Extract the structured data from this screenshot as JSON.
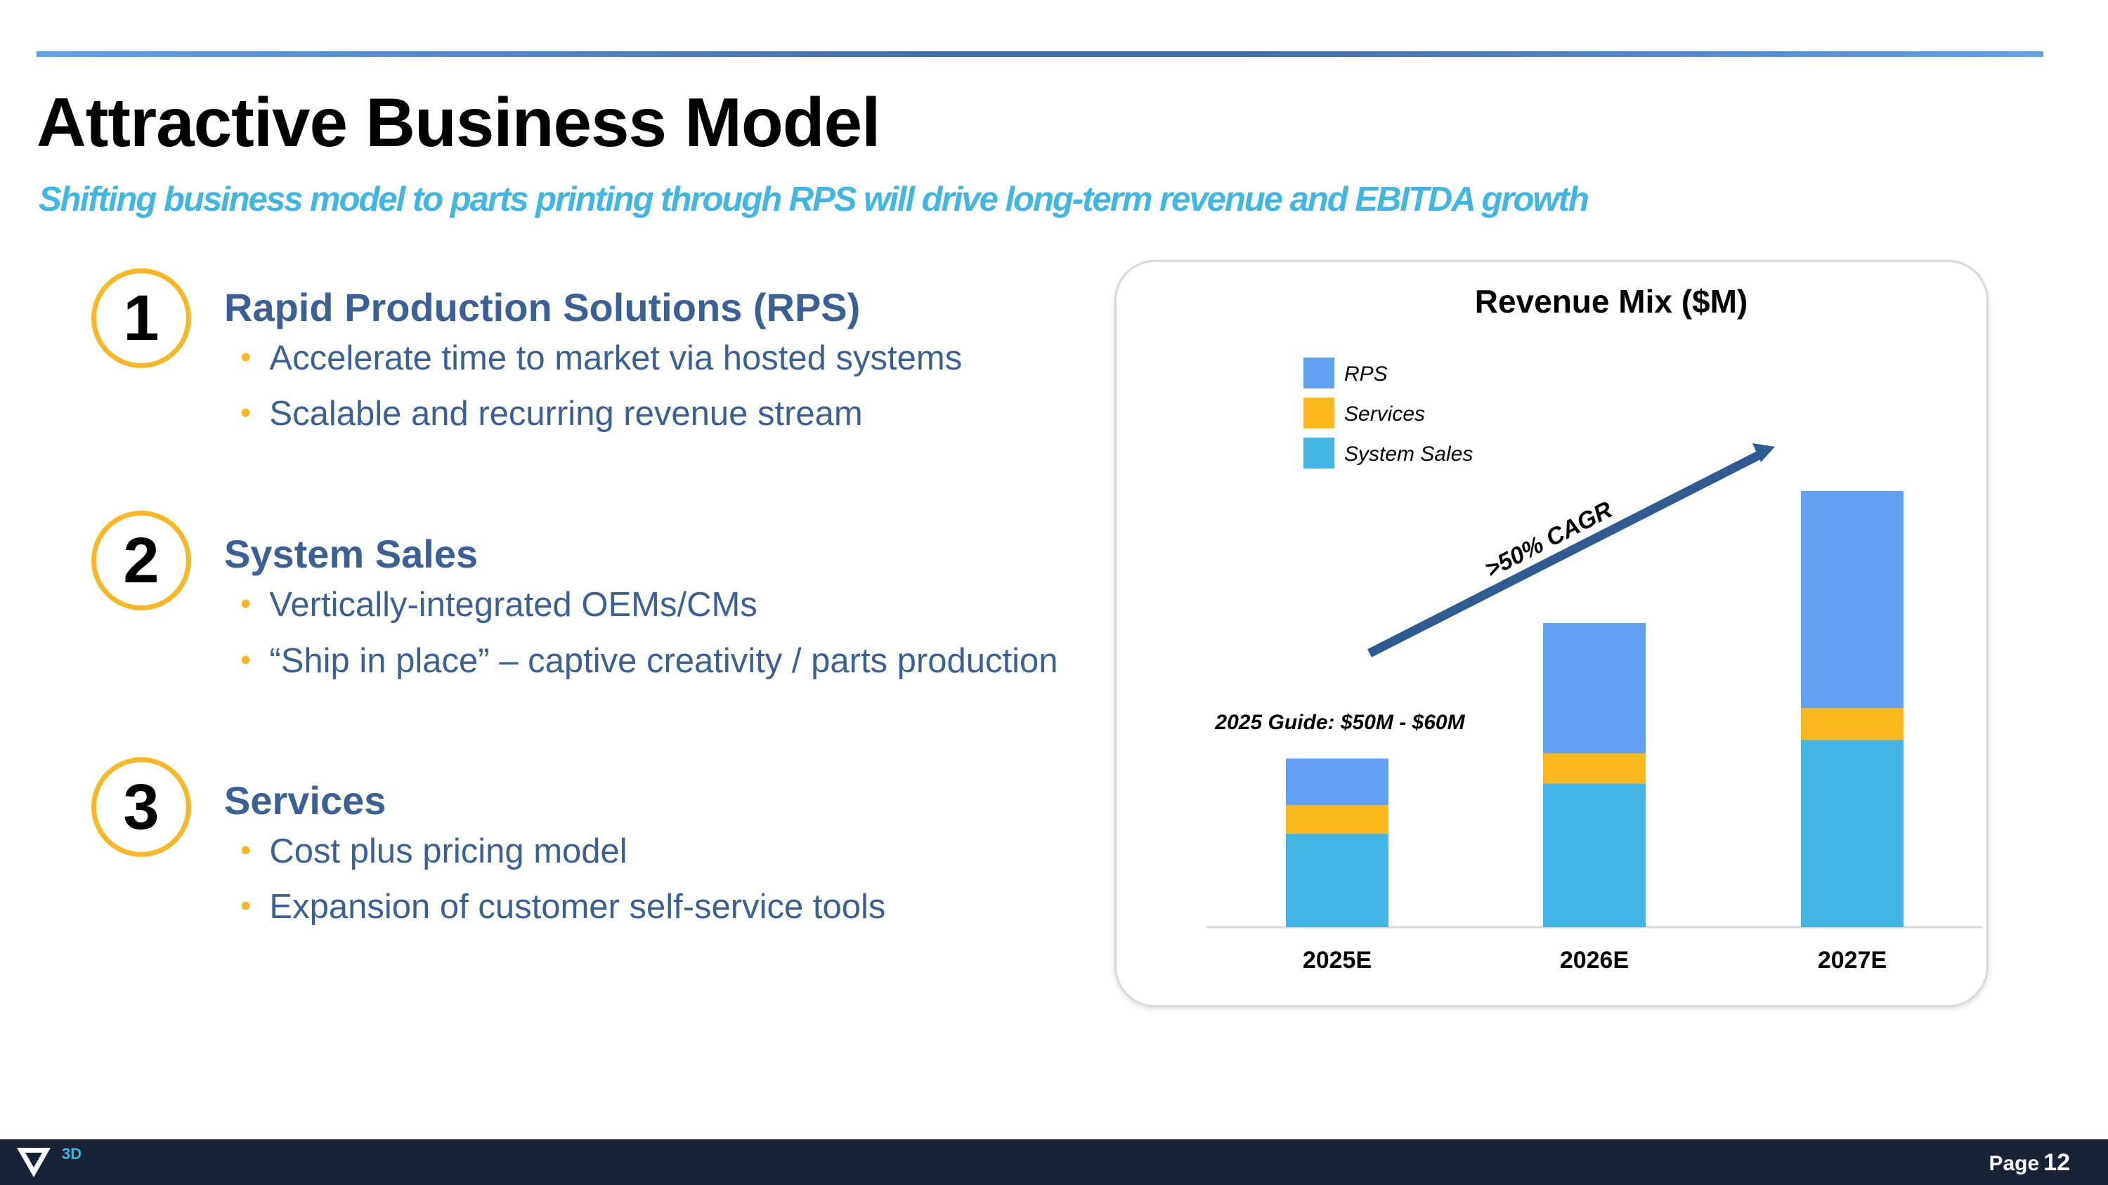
{
  "header": {
    "title": "Attractive Business Model",
    "subtitle": "Shifting business model to parts printing through RPS will drive long-term revenue and EBITDA growth"
  },
  "sections": [
    {
      "number": "1",
      "title": "Rapid Production Solutions (RPS)",
      "bullets": [
        "Accelerate time to market via hosted systems",
        "Scalable and recurring revenue stream"
      ]
    },
    {
      "number": "2",
      "title": "System Sales",
      "bullets": [
        "Vertically-integrated OEMs/CMs",
        "“Ship in place” – captive creativity / parts production"
      ]
    },
    {
      "number": "3",
      "title": "Services",
      "bullets": [
        "Cost plus pricing model",
        "Expansion of customer self-service tools"
      ]
    }
  ],
  "chart_data": {
    "type": "bar",
    "stacked": true,
    "title": "Revenue Mix ($M)",
    "categories": [
      "2025E",
      "2026E",
      "2027E"
    ],
    "series": [
      {
        "name": "System Sales",
        "values": [
          28,
          43,
          56
        ],
        "color": "#43b5e5"
      },
      {
        "name": "Services",
        "values": [
          8.5,
          9,
          9.5
        ],
        "color": "#fbb81c"
      },
      {
        "name": "RPS",
        "values": [
          14,
          39,
          65
        ],
        "color": "#62a1f2"
      }
    ],
    "legend_order": [
      "RPS",
      "Services",
      "System Sales"
    ],
    "legend_position": "top-left",
    "ylim": [
      0,
      145
    ],
    "annotations": {
      "guide": "2025 Guide: $50M - $60M",
      "cagr": ">50% CAGR"
    },
    "arrow_color": "#2f5b93",
    "axis_color": "#d9d9d9"
  },
  "footer": {
    "brand": "3D",
    "page_label": "Page",
    "page_number": "12"
  }
}
